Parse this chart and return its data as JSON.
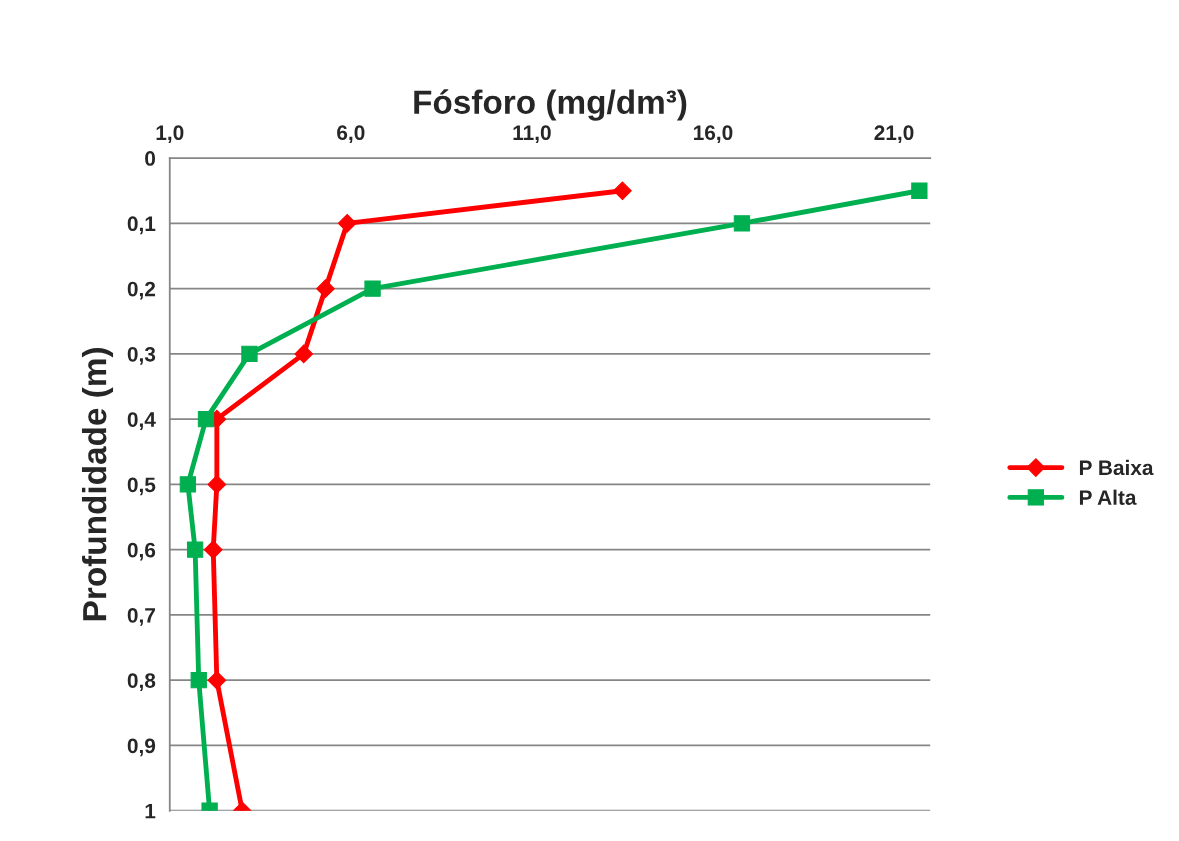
{
  "chart_data": {
    "type": "line",
    "xlabel": "Fósforo (mg/dm³)",
    "ylabel": "Profundidade (m)",
    "xlim": [
      1,
      22
    ],
    "xticks": [
      {
        "value": 1,
        "label": "1,0"
      },
      {
        "value": 6,
        "label": "6,0"
      },
      {
        "value": 11,
        "label": "11,0"
      },
      {
        "value": 16,
        "label": "16,0"
      },
      {
        "value": 21,
        "label": "21,0"
      }
    ],
    "ylim": [
      1,
      0
    ],
    "yticks": [
      0,
      {
        "value": 0.1,
        "label": "0,1"
      },
      {
        "value": 0.2,
        "label": "0,2"
      },
      {
        "value": 0.3,
        "label": "0,3"
      },
      {
        "value": 0.4,
        "label": "0,4"
      },
      {
        "value": 0.5,
        "label": "0,5"
      },
      {
        "value": 0.6,
        "label": "0,6"
      },
      {
        "value": 0.7,
        "label": "0,7"
      },
      {
        "value": 0.8,
        "label": "0,8"
      },
      {
        "value": 0.9,
        "label": "0,9"
      },
      1
    ],
    "grid": "y",
    "legend": "right",
    "series": [
      {
        "name": "P Baixa",
        "color": "#ff0000",
        "marker": "diamond",
        "x": [
          13.5,
          5.9,
          5.3,
          4.7,
          2.3,
          2.3,
          2.2,
          2.3,
          3.0
        ],
        "values": [
          0.05,
          0.1,
          0.2,
          0.3,
          0.4,
          0.5,
          0.6,
          0.8,
          1
        ]
      },
      {
        "name": "P Alta",
        "color": "#00b050",
        "marker": "square",
        "x": [
          21.7,
          16.8,
          6.6,
          3.2,
          2.0,
          1.5,
          1.7,
          1.8,
          2.1
        ],
        "values": [
          0.05,
          0.1,
          0.2,
          0.3,
          0.4,
          0.5,
          0.6,
          0.8,
          1
        ]
      }
    ]
  }
}
